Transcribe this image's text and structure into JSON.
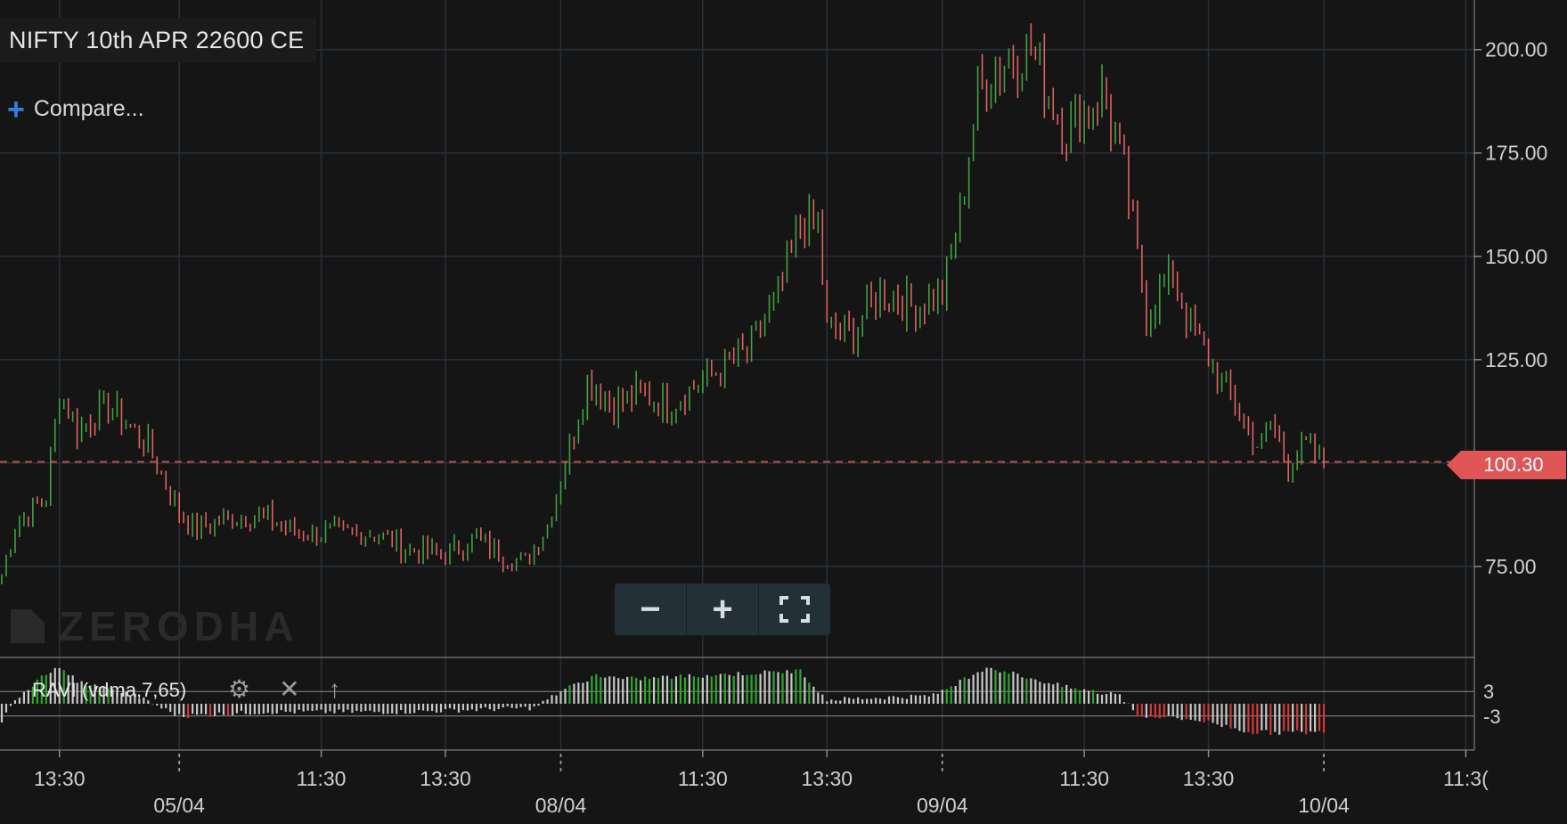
{
  "header": {
    "instrument": "NIFTY 10th APR 22600 CE",
    "compare_label": "Compare..."
  },
  "watermark": "ZERODHA",
  "zoom_controls": {
    "zoom_out": "−",
    "zoom_in": "+",
    "fullscreen": "⛶"
  },
  "indicator": {
    "label": "RAVI (vdma,7,65)",
    "settings_icon": "gear-icon",
    "close_icon": "close-icon",
    "move_up_icon": "arrow-up-icon",
    "levels": [
      "3",
      "-3"
    ]
  },
  "colors": {
    "background": "#151515",
    "grid": "#26303a",
    "up": "#3fa33f",
    "down": "#e06262",
    "last_price": "#e05555",
    "ind_gray": "#c8c8c8",
    "ind_green": "#2ea82e",
    "ind_red": "#d23a3a"
  },
  "chart_data": {
    "type": "ohlc",
    "title": "NIFTY 10th APR 22600 CE",
    "y_axis": {
      "ticks": [
        75,
        100,
        125,
        150,
        175,
        200
      ],
      "tick_labels": [
        "75.00",
        "100.00",
        "125.00",
        "150.00",
        "175.00",
        "200.00"
      ],
      "ylim": [
        53,
        212
      ],
      "side": "right"
    },
    "x_axis": {
      "time_labels": [
        "13:30",
        "11:30",
        "13:30",
        "11:30",
        "13:30",
        "11:30",
        "13:30",
        "11:3("
      ],
      "date_labels": [
        "05/04",
        "08/04",
        "09/04",
        "10/04"
      ],
      "time_label_positions_index": [
        13,
        72,
        100,
        158,
        186,
        244,
        272,
        330
      ],
      "date_label_positions_index": [
        40,
        126,
        212,
        298
      ]
    },
    "last_price": 100.3,
    "last_price_label": "100.30",
    "grid": true,
    "indicator_levels": [
      3,
      -3
    ],
    "bars_count": 299,
    "key_points": [
      {
        "i": 0,
        "p": 73
      },
      {
        "i": 3,
        "p": 85
      },
      {
        "i": 10,
        "p": 92
      },
      {
        "i": 13,
        "p": 118
      },
      {
        "i": 17,
        "p": 108
      },
      {
        "i": 24,
        "p": 114
      },
      {
        "i": 33,
        "p": 104
      },
      {
        "i": 40,
        "p": 88
      },
      {
        "i": 44,
        "p": 84
      },
      {
        "i": 52,
        "p": 87
      },
      {
        "i": 60,
        "p": 87
      },
      {
        "i": 66,
        "p": 83
      },
      {
        "i": 74,
        "p": 83
      },
      {
        "i": 84,
        "p": 83
      },
      {
        "i": 92,
        "p": 79
      },
      {
        "i": 100,
        "p": 78
      },
      {
        "i": 107,
        "p": 82
      },
      {
        "i": 112,
        "p": 78
      },
      {
        "i": 118,
        "p": 76
      },
      {
        "i": 123,
        "p": 85
      },
      {
        "i": 127,
        "p": 100
      },
      {
        "i": 132,
        "p": 120
      },
      {
        "i": 138,
        "p": 114
      },
      {
        "i": 144,
        "p": 117
      },
      {
        "i": 150,
        "p": 114
      },
      {
        "i": 158,
        "p": 120
      },
      {
        "i": 168,
        "p": 127
      },
      {
        "i": 175,
        "p": 140
      },
      {
        "i": 180,
        "p": 157
      },
      {
        "i": 184,
        "p": 158
      },
      {
        "i": 186,
        "p": 132
      },
      {
        "i": 192,
        "p": 132
      },
      {
        "i": 198,
        "p": 142
      },
      {
        "i": 205,
        "p": 138
      },
      {
        "i": 212,
        "p": 141
      },
      {
        "i": 216,
        "p": 160
      },
      {
        "i": 220,
        "p": 190
      },
      {
        "i": 226,
        "p": 197
      },
      {
        "i": 232,
        "p": 200
      },
      {
        "i": 240,
        "p": 180
      },
      {
        "i": 248,
        "p": 190
      },
      {
        "i": 253,
        "p": 170
      },
      {
        "i": 258,
        "p": 136
      },
      {
        "i": 264,
        "p": 146
      },
      {
        "i": 268,
        "p": 132
      },
      {
        "i": 274,
        "p": 122
      },
      {
        "i": 280,
        "p": 110
      },
      {
        "i": 284,
        "p": 103
      },
      {
        "i": 286,
        "p": 110
      },
      {
        "i": 290,
        "p": 100
      },
      {
        "i": 294,
        "p": 104
      },
      {
        "i": 298,
        "p": 100
      }
    ],
    "indicator_key_points": [
      {
        "i": 0,
        "v": -4
      },
      {
        "i": 4,
        "v": 2
      },
      {
        "i": 12,
        "v": 9
      },
      {
        "i": 18,
        "v": 5
      },
      {
        "i": 30,
        "v": 2
      },
      {
        "i": 40,
        "v": -3
      },
      {
        "i": 60,
        "v": -2
      },
      {
        "i": 90,
        "v": -2
      },
      {
        "i": 120,
        "v": -1
      },
      {
        "i": 126,
        "v": 3
      },
      {
        "i": 134,
        "v": 7
      },
      {
        "i": 140,
        "v": 6
      },
      {
        "i": 180,
        "v": 8
      },
      {
        "i": 186,
        "v": 1
      },
      {
        "i": 210,
        "v": 2
      },
      {
        "i": 222,
        "v": 9
      },
      {
        "i": 240,
        "v": 4
      },
      {
        "i": 252,
        "v": 2
      },
      {
        "i": 256,
        "v": -3
      },
      {
        "i": 270,
        "v": -4
      },
      {
        "i": 282,
        "v": -7
      },
      {
        "i": 298,
        "v": -7
      }
    ]
  }
}
